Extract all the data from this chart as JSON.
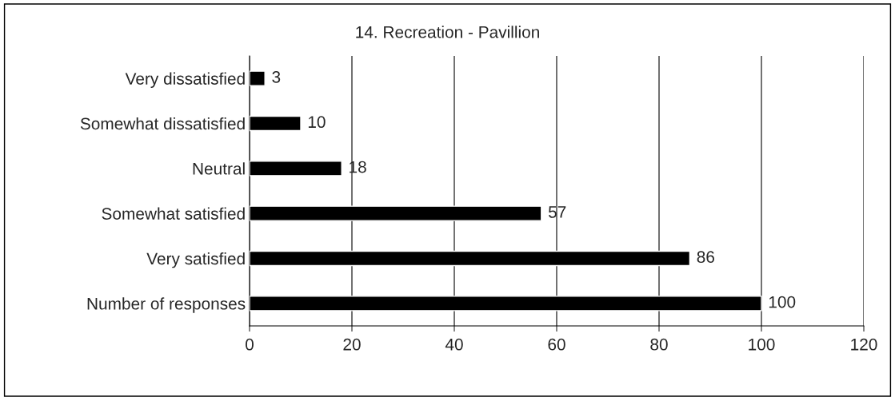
{
  "chart_data": {
    "type": "bar",
    "orientation": "horizontal",
    "title": "14. Recreation - Pavillion",
    "categories": [
      "Very dissatisfied",
      "Somewhat dissatisfied",
      "Neutral",
      "Somewhat satisfied",
      "Very satisfied",
      "Number of responses"
    ],
    "values": [
      3,
      10,
      18,
      57,
      86,
      100
    ],
    "color": "#000000",
    "xlim": [
      0,
      120
    ],
    "xticks": [
      0,
      20,
      40,
      60,
      80,
      100,
      120
    ],
    "grid": "x",
    "data_labels": true
  }
}
